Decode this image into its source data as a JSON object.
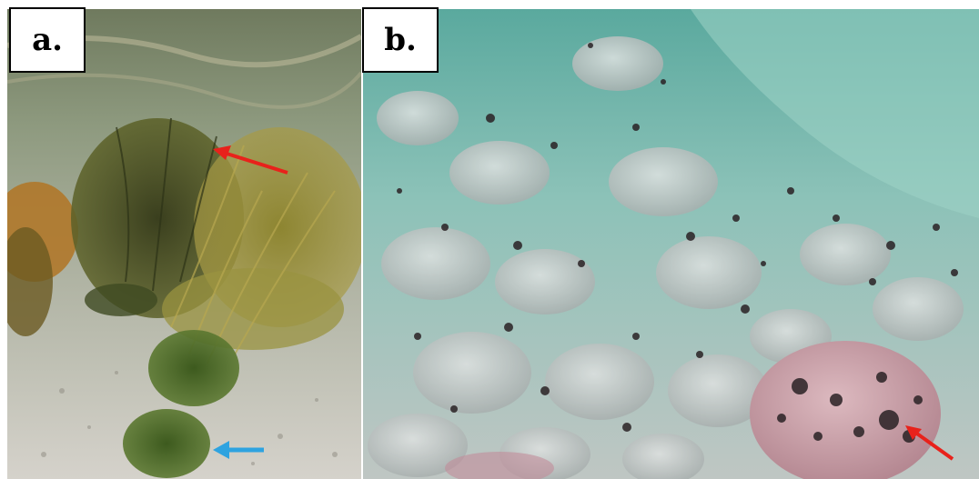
{
  "panels": [
    {
      "label": "a.",
      "arrows": [
        "red-arrow",
        "blue-arrow"
      ]
    },
    {
      "label": "b.",
      "arrows": [
        "red-arrow"
      ]
    }
  ],
  "colors": {
    "red_arrow": "#e8221b",
    "blue_arrow": "#2ea3e0",
    "water_a": "#9aa58a",
    "water_b": "#7fc0b4",
    "seaweed": "#6c6a2a",
    "rock": "#c6c9c9",
    "pink_rock": "#c99aa6"
  }
}
